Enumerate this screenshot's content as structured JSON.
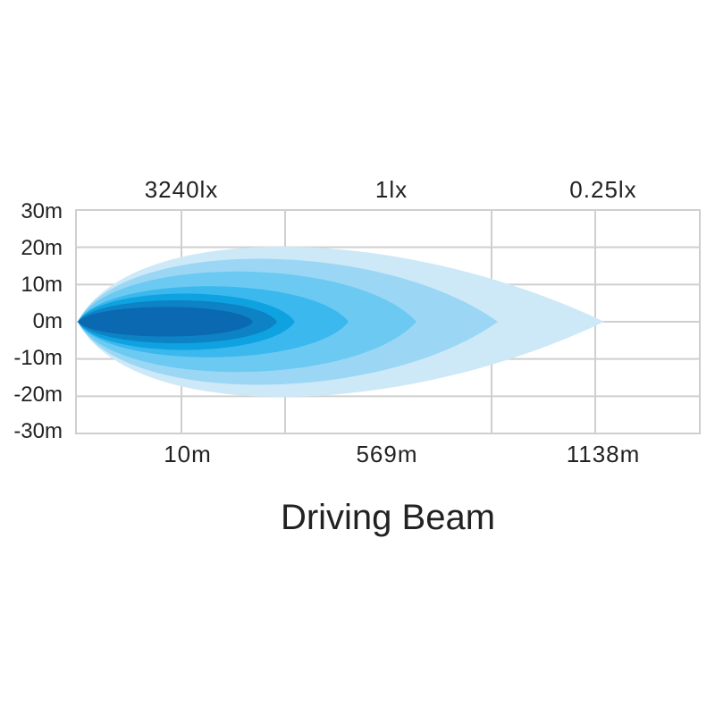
{
  "chart_data": {
    "type": "area",
    "title": "Driving Beam",
    "y_ticks": [
      "30m",
      "20m",
      "10m",
      "0m",
      "-10m",
      "-20m",
      "-30m"
    ],
    "x_bottom_labels": [
      "10m",
      "569m",
      "1138m"
    ],
    "x_top_labels": [
      "3240lx",
      "1lx",
      "0.25lx"
    ],
    "ylim": [
      -30,
      30
    ],
    "grid": true,
    "colors": {
      "grid": "#cfcfcf",
      "text": "#222222",
      "levels": [
        "#cde9f8",
        "#9bd7f5",
        "#6ccaf2",
        "#3bb8ee",
        "#0ea2e0",
        "#0d82c4",
        "#0a69b0"
      ]
    }
  }
}
